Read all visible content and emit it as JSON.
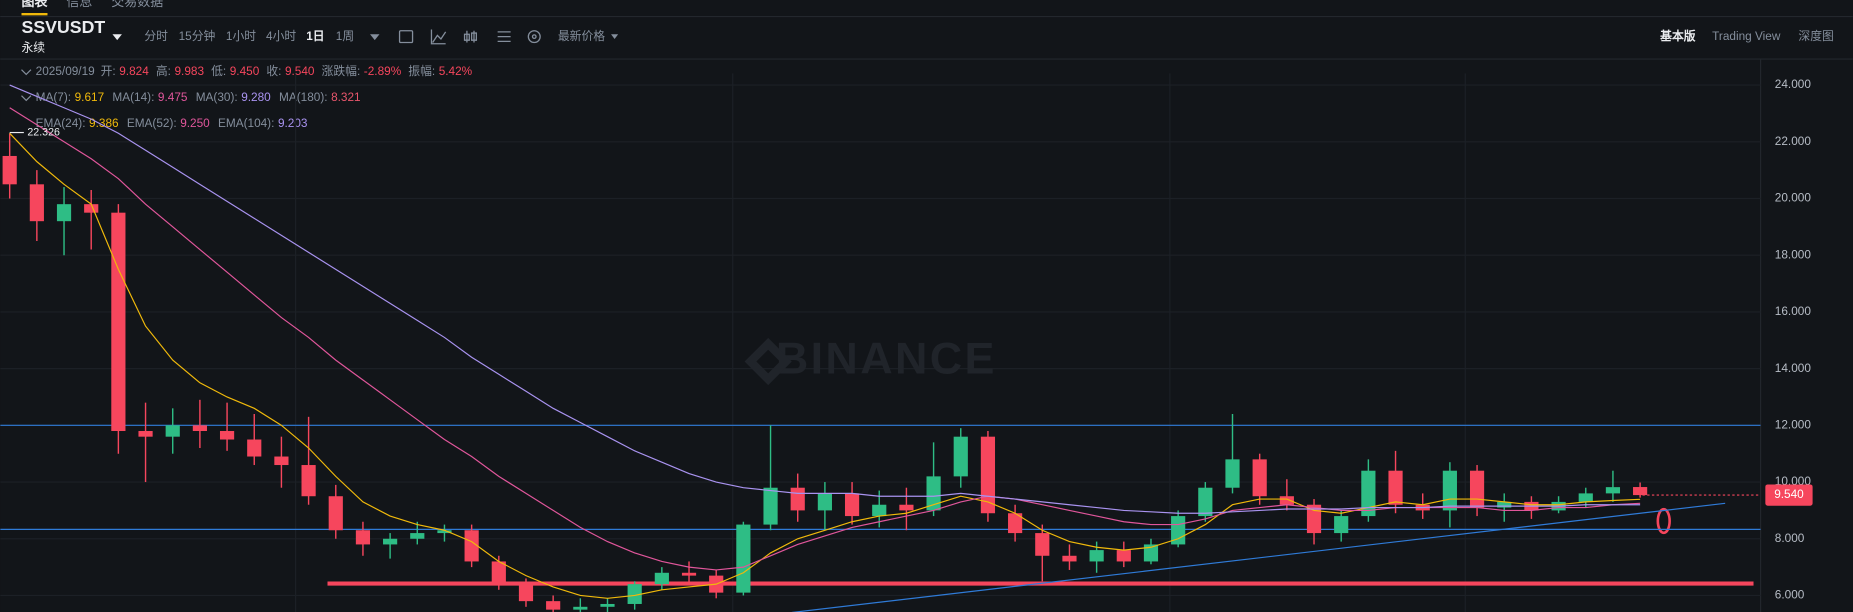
{
  "tabs": [
    "图表",
    "信息",
    "交易数据"
  ],
  "symbol": "SSVUSDT",
  "contract": "永续",
  "intervals": [
    "分时",
    "15分钟",
    "1小时",
    "4小时",
    "1日",
    "1周"
  ],
  "price_menu": "最新价格",
  "views": [
    "基本版",
    "Trading View",
    "深度图"
  ],
  "ohlc_info": {
    "date": "2025/09/19",
    "items": [
      {
        "label": "开:",
        "value": "9.824"
      },
      {
        "label": "高:",
        "value": "9.983"
      },
      {
        "label": "低:",
        "value": "9.450"
      },
      {
        "label": "收:",
        "value": "9.540"
      },
      {
        "label": "涨跌幅:",
        "value": "-2.89%"
      },
      {
        "label": "振幅:",
        "value": "5.42%"
      }
    ],
    "color": "#f6465d"
  },
  "ma_info": {
    "items": [
      {
        "label": "MA(7):",
        "value": "9.617",
        "color": "#f0b90b"
      },
      {
        "label": "MA(14):",
        "value": "9.475",
        "color": "#e0569b"
      },
      {
        "label": "MA(30):",
        "value": "9.280",
        "color": "#a993f0"
      },
      {
        "label": "MA(180):",
        "value": "8.321",
        "color": "#e8566c"
      }
    ]
  },
  "ema_info": {
    "items": [
      {
        "label": "EMA(24):",
        "value": "9.386",
        "color": "#f0b90b"
      },
      {
        "label": "EMA(52):",
        "value": "9.250",
        "color": "#e0569b"
      },
      {
        "label": "EMA(104):",
        "value": "9.203",
        "color": "#a993f0"
      }
    ]
  },
  "chart_data": {
    "type": "candlestick",
    "watermark": "BINANCE",
    "open": [
      21.5,
      20.5,
      19.2,
      19.8,
      19.5,
      11.8,
      11.6,
      12.0,
      11.8,
      11.5,
      10.9,
      10.6,
      9.5,
      8.3,
      7.8,
      8.0,
      8.2,
      8.3,
      7.2,
      6.4,
      5.8,
      5.5,
      5.6,
      5.7,
      6.4,
      6.8,
      6.7,
      6.1,
      8.5,
      9.8,
      9.0,
      9.6,
      8.8,
      9.2,
      9.0,
      10.2,
      11.6,
      8.9,
      8.2,
      7.4,
      7.2,
      7.6,
      7.2,
      7.8,
      8.8,
      9.8,
      10.8,
      9.5,
      9.2,
      8.2,
      8.8,
      10.4,
      9.2,
      9.0,
      10.4,
      9.1,
      9.3,
      9.0,
      9.3,
      9.6,
      9.824
    ],
    "high": [
      22.3,
      21.0,
      20.4,
      20.3,
      19.8,
      12.8,
      12.6,
      12.9,
      12.8,
      12.4,
      11.6,
      12.3,
      9.9,
      8.6,
      8.2,
      8.6,
      8.5,
      8.5,
      7.4,
      6.6,
      6.0,
      5.9,
      5.9,
      6.5,
      7.0,
      7.2,
      6.9,
      8.6,
      12.0,
      10.3,
      10.0,
      10.0,
      9.7,
      9.8,
      11.4,
      11.9,
      11.8,
      9.2,
      8.5,
      7.8,
      7.9,
      7.9,
      8.0,
      9.0,
      10.0,
      12.4,
      11.0,
      10.1,
      9.4,
      9.0,
      10.8,
      11.1,
      9.6,
      10.7,
      10.6,
      9.6,
      9.5,
      9.5,
      9.8,
      10.4,
      9.983
    ],
    "low": [
      20.0,
      18.5,
      18.0,
      18.2,
      11.0,
      10.0,
      11.0,
      11.2,
      11.1,
      10.6,
      9.8,
      9.2,
      8.0,
      7.4,
      7.3,
      7.8,
      7.9,
      7.0,
      6.2,
      5.6,
      5.4,
      5.4,
      5.4,
      5.5,
      6.2,
      6.4,
      5.9,
      6.0,
      8.3,
      8.6,
      8.3,
      8.5,
      8.4,
      8.3,
      8.8,
      9.8,
      8.6,
      7.9,
      6.5,
      6.9,
      6.8,
      7.0,
      7.1,
      7.7,
      8.6,
      9.6,
      9.2,
      9.0,
      7.8,
      7.9,
      8.6,
      8.9,
      8.7,
      8.4,
      8.8,
      8.6,
      8.7,
      8.9,
      9.1,
      9.3,
      9.45
    ],
    "close": [
      20.5,
      19.2,
      19.8,
      19.5,
      11.8,
      11.6,
      12.0,
      11.8,
      11.5,
      10.9,
      10.6,
      9.5,
      8.3,
      7.8,
      8.0,
      8.2,
      8.3,
      7.2,
      6.4,
      5.8,
      5.5,
      5.6,
      5.7,
      6.4,
      6.8,
      6.7,
      6.1,
      8.5,
      9.8,
      9.0,
      9.6,
      8.8,
      9.2,
      9.0,
      10.2,
      11.6,
      8.9,
      8.2,
      7.4,
      7.2,
      7.6,
      7.2,
      7.8,
      8.8,
      9.8,
      10.8,
      9.5,
      9.2,
      8.2,
      8.8,
      10.4,
      9.2,
      9.0,
      10.4,
      9.1,
      9.3,
      9.0,
      9.3,
      9.6,
      9.82,
      9.54
    ],
    "up_color": "#2ebd85",
    "down_color": "#f6465d",
    "lines": [
      {
        "color": "#f0b90b",
        "values": [
          22.3,
          21.3,
          20.5,
          19.8,
          17.5,
          15.5,
          14.3,
          13.5,
          13.0,
          12.6,
          12.0,
          11.2,
          10.2,
          9.3,
          8.8,
          8.5,
          8.3,
          7.9,
          7.2,
          6.7,
          6.3,
          6.0,
          5.9,
          6.0,
          6.2,
          6.3,
          6.4,
          6.8,
          7.5,
          8.0,
          8.3,
          8.6,
          8.8,
          8.9,
          9.2,
          9.5,
          9.3,
          8.9,
          8.3,
          7.9,
          7.7,
          7.6,
          7.7,
          8.0,
          8.5,
          9.2,
          9.4,
          9.4,
          9.0,
          8.9,
          9.1,
          9.3,
          9.2,
          9.4,
          9.4,
          9.3,
          9.2,
          9.2,
          9.3,
          9.35,
          9.39
        ]
      },
      {
        "color": "#e0569b",
        "values": [
          23.2,
          22.6,
          22.0,
          21.4,
          20.7,
          19.8,
          19.0,
          18.2,
          17.4,
          16.6,
          15.8,
          15.1,
          14.3,
          13.6,
          12.9,
          12.2,
          11.5,
          10.9,
          10.2,
          9.6,
          9.0,
          8.4,
          7.9,
          7.5,
          7.2,
          7.0,
          6.9,
          7.0,
          7.4,
          7.8,
          8.1,
          8.4,
          8.6,
          8.8,
          9.0,
          9.3,
          9.5,
          9.4,
          9.2,
          9.0,
          8.8,
          8.6,
          8.5,
          8.5,
          8.7,
          9.0,
          9.1,
          9.2,
          9.1,
          9.0,
          9.0,
          9.1,
          9.1,
          9.1,
          9.1,
          9.0,
          9.0,
          9.1,
          9.1,
          9.2,
          9.25
        ]
      },
      {
        "color": "#a993f0",
        "values": [
          24.0,
          23.6,
          23.2,
          22.8,
          22.3,
          21.7,
          21.1,
          20.5,
          19.9,
          19.3,
          18.7,
          18.1,
          17.5,
          16.9,
          16.3,
          15.7,
          15.1,
          14.4,
          13.8,
          13.2,
          12.6,
          12.1,
          11.6,
          11.1,
          10.7,
          10.3,
          10.0,
          9.8,
          9.7,
          9.6,
          9.6,
          9.6,
          9.5,
          9.5,
          9.5,
          9.6,
          9.5,
          9.4,
          9.3,
          9.2,
          9.1,
          9.0,
          8.95,
          8.9,
          8.9,
          8.95,
          9.0,
          9.05,
          9.05,
          9.05,
          9.1,
          9.1,
          9.1,
          9.15,
          9.15,
          9.15,
          9.15,
          9.15,
          9.2,
          9.2,
          9.2
        ]
      }
    ],
    "levels": [
      {
        "value": 12.0,
        "color": "#2f7bd8"
      },
      {
        "value": 8.33,
        "color": "#2f7bd8"
      },
      {
        "value": 6.42,
        "color": "#f6465d"
      }
    ],
    "trend_line": [
      5.4,
      9.25
    ],
    "high_marker": 22.326,
    "last_price": {
      "value": 9.54,
      "label": "9.540"
    },
    "ylim": [
      5.417,
      24.417
    ],
    "yticks": [
      {
        "value": 6,
        "label": "6.000"
      },
      {
        "value": 8,
        "label": "8.000"
      },
      {
        "value": 10,
        "label": "10.000"
      },
      {
        "value": 12,
        "label": "12.000"
      },
      {
        "value": 14,
        "label": "14.000"
      },
      {
        "value": 16,
        "label": "16.000"
      },
      {
        "value": 18,
        "label": "18.000"
      },
      {
        "value": 20,
        "label": "20.000"
      },
      {
        "value": 22,
        "label": "22.000"
      },
      {
        "value": 24,
        "label": "24.000"
      }
    ],
    "grid": true
  }
}
